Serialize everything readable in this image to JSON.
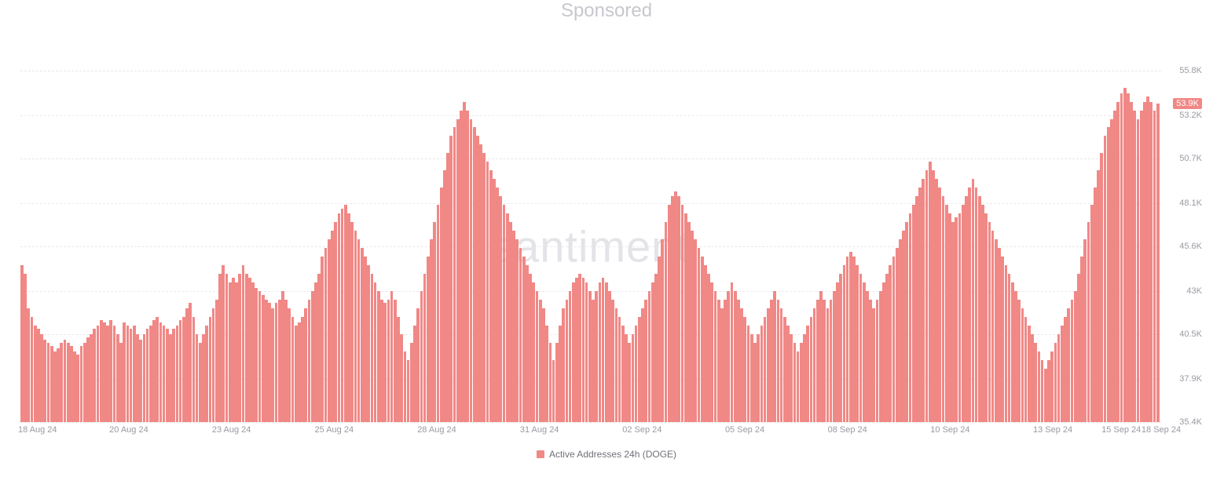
{
  "header": {
    "sponsored_label": "Sponsored"
  },
  "chart": {
    "type": "bar",
    "watermark": "santiment",
    "bar_color": "#f08886",
    "background_color": "#ffffff",
    "grid_color": "#e9e9ee",
    "text_color": "#9a9aa2",
    "badge_bg": "#f08886",
    "badge_text_color": "#ffffff",
    "ylim": [
      35.4,
      55.8
    ],
    "y_ticks": [
      "55.8K",
      "53.2K",
      "50.7K",
      "48.1K",
      "45.6K",
      "43K",
      "40.5K",
      "37.9K",
      "35.4K"
    ],
    "y_tick_values": [
      55.8,
      53.2,
      50.7,
      48.1,
      45.6,
      43.0,
      40.5,
      37.9,
      35.4
    ],
    "current_value_badge": "53.9K",
    "current_value": 53.9,
    "x_ticks": [
      {
        "label": "18 Aug 24",
        "pos": 0.015
      },
      {
        "label": "20 Aug 24",
        "pos": 0.095
      },
      {
        "label": "23 Aug 24",
        "pos": 0.185
      },
      {
        "label": "25 Aug 24",
        "pos": 0.275
      },
      {
        "label": "28 Aug 24",
        "pos": 0.365
      },
      {
        "label": "31 Aug 24",
        "pos": 0.455
      },
      {
        "label": "02 Sep 24",
        "pos": 0.545
      },
      {
        "label": "05 Sep 24",
        "pos": 0.635
      },
      {
        "label": "08 Sep 24",
        "pos": 0.725
      },
      {
        "label": "10 Sep 24",
        "pos": 0.815
      },
      {
        "label": "13 Sep 24",
        "pos": 0.905
      },
      {
        "label": "15 Sep 24",
        "pos": 0.965
      },
      {
        "label": "18 Sep 24",
        "pos": 1.0
      }
    ],
    "legend_label": "Active Addresses 24h (DOGE)",
    "values": [
      44.5,
      44.0,
      42.0,
      41.5,
      41.0,
      40.8,
      40.5,
      40.2,
      40.0,
      39.8,
      39.5,
      39.7,
      40.0,
      40.2,
      40.0,
      39.8,
      39.5,
      39.3,
      39.8,
      40.0,
      40.3,
      40.5,
      40.8,
      41.0,
      41.3,
      41.2,
      41.0,
      41.3,
      41.0,
      40.5,
      40.0,
      41.2,
      41.0,
      40.8,
      41.0,
      40.5,
      40.2,
      40.5,
      40.8,
      41.0,
      41.3,
      41.5,
      41.2,
      41.0,
      40.8,
      40.5,
      40.8,
      41.0,
      41.3,
      41.5,
      42.0,
      42.3,
      41.5,
      40.5,
      40.0,
      40.5,
      41.0,
      41.5,
      42.0,
      42.5,
      44.0,
      44.5,
      44.0,
      43.5,
      43.8,
      43.5,
      44.0,
      44.5,
      44.0,
      43.8,
      43.5,
      43.2,
      43.0,
      42.8,
      42.5,
      42.3,
      42.0,
      42.3,
      42.5,
      43.0,
      42.5,
      42.0,
      41.5,
      41.0,
      41.2,
      41.5,
      42.0,
      42.5,
      43.0,
      43.5,
      44.0,
      45.0,
      45.5,
      46.0,
      46.5,
      47.0,
      47.5,
      47.8,
      48.0,
      47.5,
      47.0,
      46.5,
      46.0,
      45.5,
      45.0,
      44.5,
      44.0,
      43.5,
      43.0,
      42.5,
      42.3,
      42.5,
      43.0,
      42.5,
      41.5,
      40.5,
      39.5,
      39.0,
      40.0,
      41.0,
      42.0,
      43.0,
      44.0,
      45.0,
      46.0,
      47.0,
      48.0,
      49.0,
      50.0,
      51.0,
      52.0,
      52.5,
      53.0,
      53.5,
      54.0,
      53.5,
      53.0,
      52.5,
      52.0,
      51.5,
      51.0,
      50.5,
      50.0,
      49.5,
      49.0,
      48.5,
      48.0,
      47.5,
      47.0,
      46.5,
      46.0,
      45.5,
      45.0,
      44.5,
      44.0,
      43.5,
      43.0,
      42.5,
      42.0,
      41.0,
      40.0,
      39.0,
      40.0,
      41.0,
      42.0,
      42.5,
      43.0,
      43.5,
      43.8,
      44.0,
      43.8,
      43.5,
      43.0,
      42.5,
      43.0,
      43.5,
      43.8,
      43.5,
      43.0,
      42.5,
      42.0,
      41.5,
      41.0,
      40.5,
      40.0,
      40.5,
      41.0,
      41.5,
      42.0,
      42.5,
      43.0,
      43.5,
      44.0,
      45.0,
      46.0,
      47.0,
      48.0,
      48.5,
      48.8,
      48.5,
      48.0,
      47.5,
      47.0,
      46.5,
      46.0,
      45.5,
      45.0,
      44.5,
      44.0,
      43.5,
      43.0,
      42.5,
      42.0,
      42.5,
      43.0,
      43.5,
      43.0,
      42.5,
      42.0,
      41.5,
      41.0,
      40.5,
      40.0,
      40.5,
      41.0,
      41.5,
      42.0,
      42.5,
      43.0,
      42.5,
      42.0,
      41.5,
      41.0,
      40.5,
      40.0,
      39.5,
      40.0,
      40.5,
      41.0,
      41.5,
      42.0,
      42.5,
      43.0,
      42.5,
      42.0,
      42.5,
      43.0,
      43.5,
      44.0,
      44.5,
      45.0,
      45.3,
      45.0,
      44.5,
      44.0,
      43.5,
      43.0,
      42.5,
      42.0,
      42.5,
      43.0,
      43.5,
      44.0,
      44.5,
      45.0,
      45.5,
      46.0,
      46.5,
      47.0,
      47.5,
      48.0,
      48.5,
      49.0,
      49.5,
      50.0,
      50.5,
      50.0,
      49.5,
      49.0,
      48.5,
      48.0,
      47.5,
      47.0,
      47.3,
      47.5,
      48.0,
      48.5,
      49.0,
      49.5,
      49.0,
      48.5,
      48.0,
      47.5,
      47.0,
      46.5,
      46.0,
      45.5,
      45.0,
      44.5,
      44.0,
      43.5,
      43.0,
      42.5,
      42.0,
      41.5,
      41.0,
      40.5,
      40.0,
      39.5,
      39.0,
      38.5,
      39.0,
      39.5,
      40.0,
      40.5,
      41.0,
      41.5,
      42.0,
      42.5,
      43.0,
      44.0,
      45.0,
      46.0,
      47.0,
      48.0,
      49.0,
      50.0,
      51.0,
      52.0,
      52.5,
      53.0,
      53.5,
      54.0,
      54.5,
      54.8,
      54.5,
      54.0,
      53.5,
      53.0,
      53.5,
      54.0,
      54.3,
      54.0,
      53.5,
      53.9
    ]
  }
}
